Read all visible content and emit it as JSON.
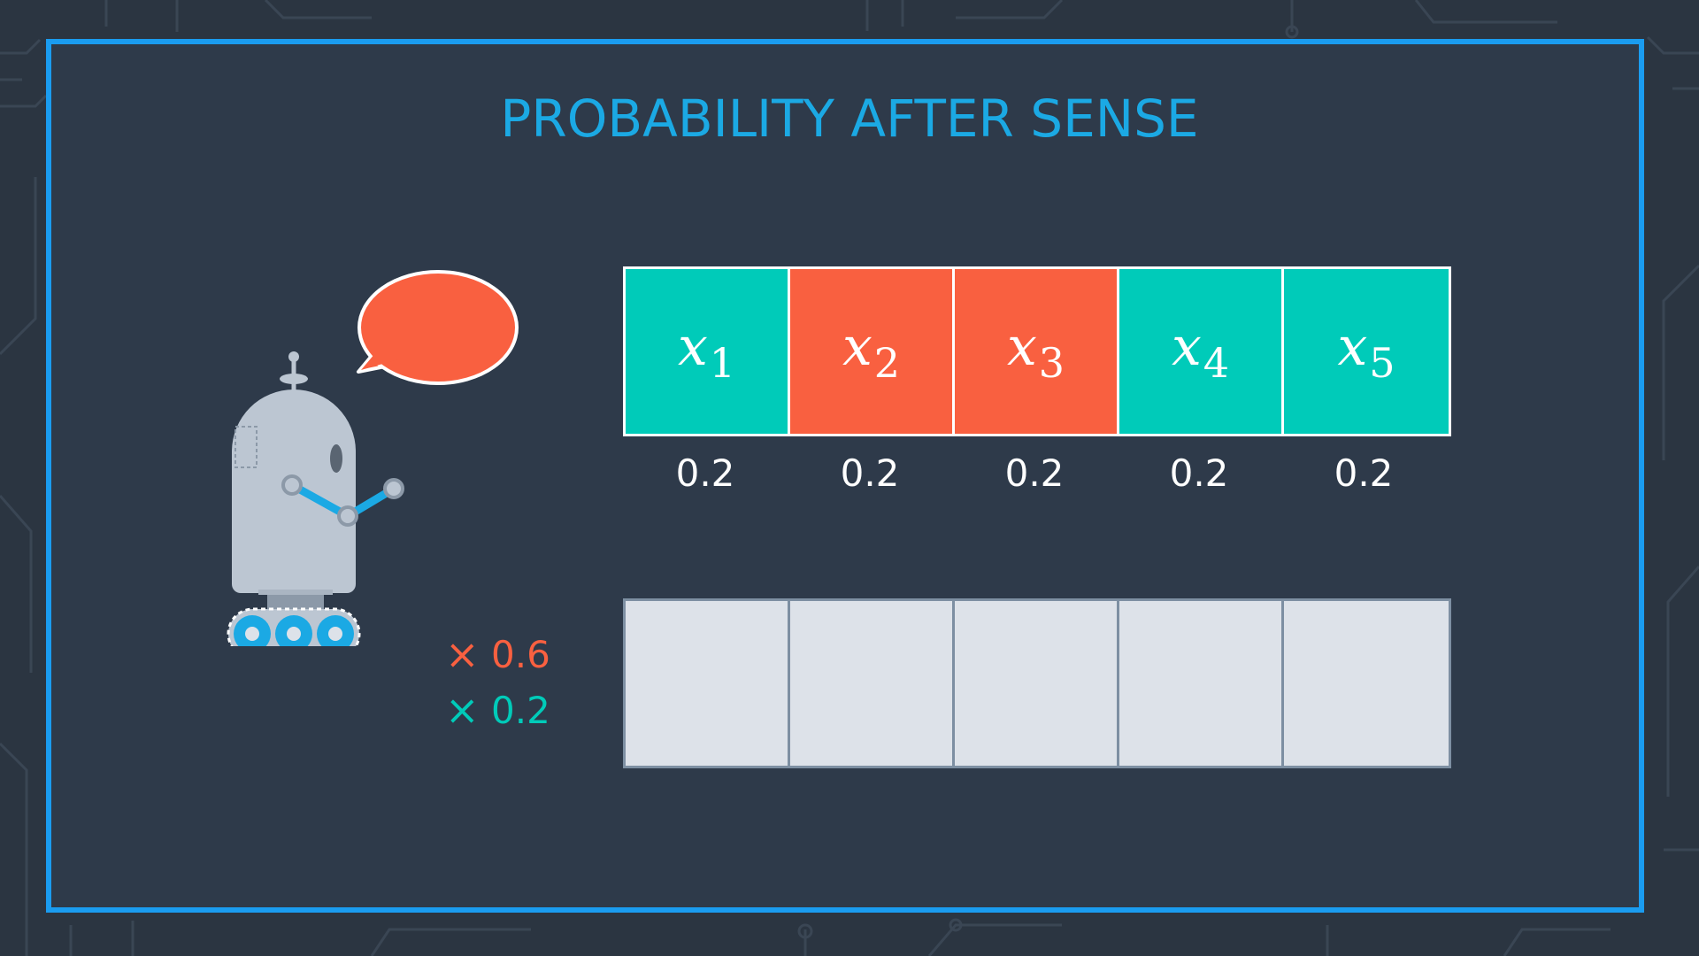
{
  "title": "PROBABILITY AFTER SENSE",
  "colors": {
    "green": "#00cbb9",
    "red": "#f96040",
    "frame": "#1a9cf0",
    "title": "#1ba9e4",
    "empty_cell": "#dde2e9"
  },
  "cells": [
    {
      "var": "x",
      "sub": "1",
      "color": "green"
    },
    {
      "var": "x",
      "sub": "2",
      "color": "red"
    },
    {
      "var": "x",
      "sub": "3",
      "color": "red"
    },
    {
      "var": "x",
      "sub": "4",
      "color": "green"
    },
    {
      "var": "x",
      "sub": "5",
      "color": "green"
    }
  ],
  "prior": [
    "0.2",
    "0.2",
    "0.2",
    "0.2",
    "0.2"
  ],
  "multipliers": [
    {
      "symbol": "×",
      "value": "0.6",
      "color": "red"
    },
    {
      "symbol": "×",
      "value": "0.2",
      "color": "green"
    }
  ],
  "icons": [
    "robot-icon",
    "speech-bubble-icon",
    "multiply-icon"
  ]
}
